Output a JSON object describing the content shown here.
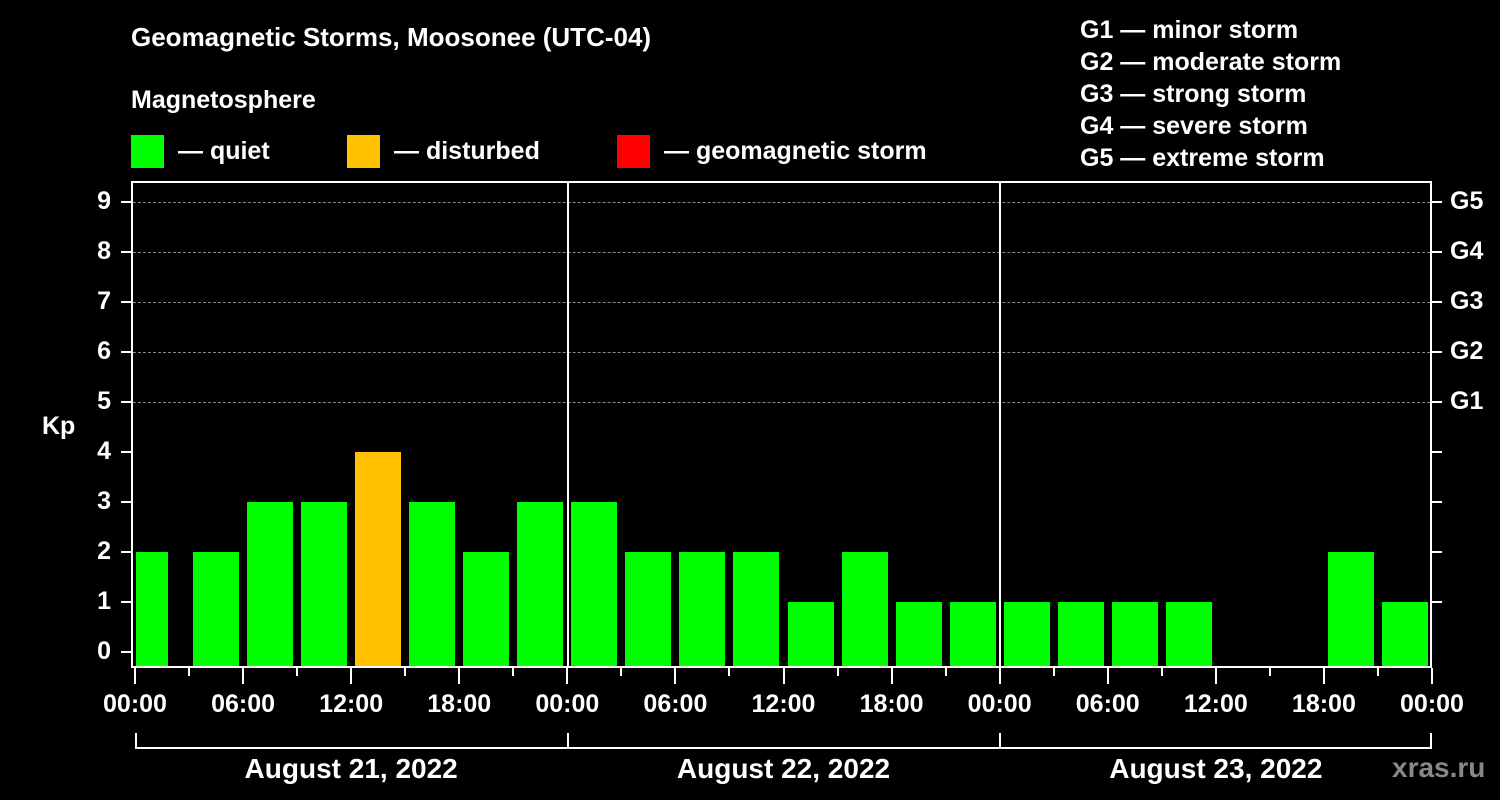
{
  "header": {
    "title": "Geomagnetic Storms, Moosonee (UTC-04)",
    "subtitle": "Magnetosphere"
  },
  "legend": [
    {
      "label": "— quiet",
      "color": "#00ff00"
    },
    {
      "label": "— disturbed",
      "color": "#ffc000"
    },
    {
      "label": "— geomagnetic storm",
      "color": "#ff0000"
    }
  ],
  "g_scale_legend": [
    "G1 — minor storm",
    "G2 — moderate storm",
    "G3 — strong storm",
    "G4 — severe storm",
    "G5 — extreme storm"
  ],
  "watermark": "xras.ru",
  "chart_data": {
    "type": "bar",
    "title": "Geomagnetic Storms, Moosonee (UTC-04)",
    "subtitle": "Magnetosphere",
    "ylabel": "Kp",
    "xlabel": "",
    "ylim": [
      0,
      9
    ],
    "yticks": [
      0,
      1,
      2,
      3,
      4,
      5,
      6,
      7,
      8,
      9
    ],
    "right_axis_labels": [
      {
        "kp": 5,
        "label": "G1"
      },
      {
        "kp": 6,
        "label": "G2"
      },
      {
        "kp": 7,
        "label": "G3"
      },
      {
        "kp": 8,
        "label": "G4"
      },
      {
        "kp": 9,
        "label": "G5"
      }
    ],
    "grid": "dashed horizontal at Kp 5-9",
    "x_tick_labels": [
      "00:00",
      "06:00",
      "12:00",
      "18:00",
      "00:00",
      "06:00",
      "12:00",
      "18:00",
      "00:00",
      "06:00",
      "12:00",
      "18:00",
      "00:00"
    ],
    "dates": [
      "August 21, 2022",
      "August 22, 2022",
      "August 23, 2022"
    ],
    "interval_hours": 3,
    "categories": [
      "Aug 21 00:00",
      "Aug 21 03:00",
      "Aug 21 06:00",
      "Aug 21 09:00",
      "Aug 21 12:00",
      "Aug 21 15:00",
      "Aug 21 18:00",
      "Aug 21 21:00",
      "Aug 22 00:00",
      "Aug 22 03:00",
      "Aug 22 06:00",
      "Aug 22 09:00",
      "Aug 22 12:00",
      "Aug 22 15:00",
      "Aug 22 18:00",
      "Aug 22 21:00",
      "Aug 23 00:00",
      "Aug 23 03:00",
      "Aug 23 06:00",
      "Aug 23 09:00",
      "Aug 23 12:00",
      "Aug 23 15:00",
      "Aug 23 18:00",
      "Aug 23 21:00"
    ],
    "values": [
      2,
      2,
      3,
      3,
      4,
      3,
      2,
      3,
      3,
      2,
      2,
      2,
      1,
      2,
      1,
      1,
      1,
      1,
      1,
      1,
      null,
      null,
      2,
      1
    ],
    "status": [
      "quiet",
      "quiet",
      "quiet",
      "quiet",
      "disturbed",
      "quiet",
      "quiet",
      "quiet",
      "quiet",
      "quiet",
      "quiet",
      "quiet",
      "quiet",
      "quiet",
      "quiet",
      "quiet",
      "quiet",
      "quiet",
      "quiet",
      "quiet",
      null,
      null,
      "quiet",
      "quiet"
    ],
    "legend": [
      {
        "label": "quiet",
        "color": "#00ff00"
      },
      {
        "label": "disturbed",
        "color": "#ffc000"
      },
      {
        "label": "geomagnetic storm",
        "color": "#ff0000"
      }
    ]
  }
}
